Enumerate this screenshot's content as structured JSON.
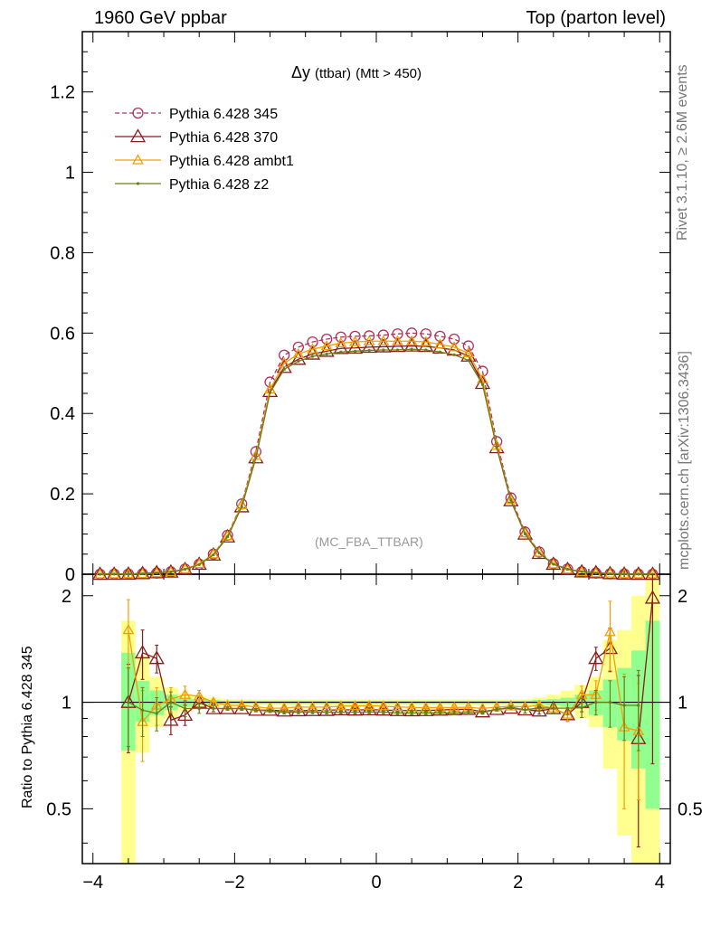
{
  "header": {
    "left": "1960 GeV ppbar",
    "right": "Top (parton level)"
  },
  "side_labels": {
    "rivet": "Rivet 3.1.10, ≥ 2.6M events",
    "site": "mcplots.cern.ch [arXiv:1306.3436]"
  },
  "chart_data": {
    "type": "line",
    "title_symbol": "Δy",
    "title_paren": "(ttbar)",
    "title_rest": "(Mtt > 450)",
    "reference_label": "(MC_FBA_TTBAR)",
    "xlabel": "",
    "ylabel": "",
    "ratio_ylabel": "Ratio to Pythia 6.428 345",
    "xlim": [
      -4.15,
      4.15
    ],
    "ylim": [
      0,
      1.35
    ],
    "ratio_ylim": [
      0.35,
      2.3
    ],
    "x_ticks": [
      "−4",
      "−2",
      "0",
      "2",
      "4"
    ],
    "y_ticks": [
      "0",
      "0.2",
      "0.4",
      "0.6",
      "0.8",
      "1",
      "1.2"
    ],
    "ratio_y_ticks": [
      "0.5",
      "1",
      "2"
    ],
    "legend_position": "top-left",
    "x": [
      -3.9,
      -3.7,
      -3.5,
      -3.3,
      -3.1,
      -2.9,
      -2.7,
      -2.5,
      -2.3,
      -2.1,
      -1.9,
      -1.7,
      -1.5,
      -1.3,
      -1.1,
      -0.9,
      -0.7,
      -0.5,
      -0.3,
      -0.1,
      0.1,
      0.3,
      0.5,
      0.7,
      0.9,
      1.1,
      1.3,
      1.5,
      1.7,
      1.9,
      2.1,
      2.3,
      2.5,
      2.7,
      2.9,
      3.1,
      3.3,
      3.5,
      3.7,
      3.9
    ],
    "series": [
      {
        "name": "Pythia 6.428 345",
        "color": "#b5305a",
        "marker": "circle",
        "dashed": true,
        "values": [
          0,
          0.0002,
          0.0005,
          0.0013,
          0.003,
          0.006,
          0.013,
          0.025,
          0.05,
          0.097,
          0.175,
          0.305,
          0.478,
          0.545,
          0.565,
          0.578,
          0.585,
          0.59,
          0.592,
          0.593,
          0.595,
          0.598,
          0.6,
          0.598,
          0.592,
          0.585,
          0.568,
          0.505,
          0.33,
          0.19,
          0.105,
          0.055,
          0.026,
          0.013,
          0.006,
          0.003,
          0.0012,
          0.0005,
          0.0002,
          0
        ]
      },
      {
        "name": "Pythia 6.428 370",
        "color": "#8b1a1a",
        "marker": "triangle",
        "dashed": false,
        "values": [
          0,
          0.0002,
          0.0005,
          0.0018,
          0.004,
          0.0055,
          0.012,
          0.025,
          0.048,
          0.093,
          0.168,
          0.29,
          0.455,
          0.515,
          0.535,
          0.548,
          0.555,
          0.562,
          0.563,
          0.565,
          0.566,
          0.567,
          0.568,
          0.567,
          0.563,
          0.558,
          0.543,
          0.475,
          0.315,
          0.183,
          0.1,
          0.052,
          0.025,
          0.012,
          0.006,
          0.004,
          0.0017,
          0.0006,
          0.00015,
          0
        ]
      },
      {
        "name": "Pythia 6.428 ambt1",
        "color": "#f0a000",
        "marker": "triangle",
        "dashed": false,
        "values": [
          0,
          0.0002,
          0.0004,
          0.0011,
          0.003,
          0.006,
          0.013,
          0.026,
          0.05,
          0.095,
          0.172,
          0.295,
          0.46,
          0.525,
          0.548,
          0.56,
          0.568,
          0.575,
          0.578,
          0.58,
          0.58,
          0.58,
          0.58,
          0.578,
          0.572,
          0.565,
          0.55,
          0.485,
          0.32,
          0.185,
          0.102,
          0.054,
          0.025,
          0.012,
          0.006,
          0.003,
          0.0019,
          0.0004,
          0.00015,
          0
        ]
      },
      {
        "name": "Pythia 6.428 z2",
        "color": "#6b7d16",
        "marker": "dot",
        "dashed": false,
        "values": [
          0,
          0.0002,
          0.0005,
          0.0012,
          0.0032,
          0.0057,
          0.0125,
          0.024,
          0.048,
          0.093,
          0.168,
          0.29,
          0.452,
          0.51,
          0.53,
          0.542,
          0.548,
          0.553,
          0.555,
          0.557,
          0.558,
          0.558,
          0.56,
          0.558,
          0.553,
          0.546,
          0.532,
          0.472,
          0.315,
          0.184,
          0.1,
          0.053,
          0.025,
          0.0125,
          0.0065,
          0.003,
          0.0012,
          0.0005,
          0.0002,
          0
        ]
      }
    ],
    "ratio_series": [
      {
        "name": "Pythia 6.428 370",
        "color": "#8b1a1a",
        "marker": "triangle",
        "values": [
          null,
          null,
          1.0,
          1.38,
          1.33,
          0.89,
          0.92,
          1.0,
          0.96,
          0.96,
          0.96,
          0.95,
          0.95,
          0.945,
          0.947,
          0.948,
          0.949,
          0.953,
          0.951,
          0.953,
          0.951,
          0.948,
          0.947,
          0.948,
          0.951,
          0.954,
          0.956,
          0.94,
          0.955,
          0.963,
          0.952,
          0.945,
          0.96,
          0.923,
          1.0,
          1.33,
          1.42,
          null,
          0.79,
          1.97
        ],
        "err": [
          0,
          0,
          0.28,
          0.22,
          0.12,
          0.08,
          0.06,
          0.04,
          0.02,
          0.01,
          0.01,
          0.01,
          0.01,
          0.01,
          0.01,
          0.01,
          0.01,
          0.01,
          0.01,
          0.01,
          0.01,
          0.01,
          0.01,
          0.01,
          0.01,
          0.01,
          0.01,
          0.01,
          0.01,
          0.01,
          0.02,
          0.02,
          0.03,
          0.04,
          0.06,
          0.1,
          0.2,
          0,
          0.4,
          1.3
        ]
      },
      {
        "name": "Pythia 6.428 ambt1",
        "color": "#f0a000",
        "marker": "triangle",
        "values": [
          null,
          null,
          1.6,
          0.88,
          0.98,
          1.02,
          1.05,
          1.04,
          1.0,
          0.98,
          0.98,
          0.97,
          0.962,
          0.963,
          0.97,
          0.968,
          0.97,
          0.975,
          0.976,
          0.978,
          0.975,
          0.97,
          0.967,
          0.966,
          0.966,
          0.966,
          0.968,
          0.96,
          0.97,
          0.974,
          0.971,
          0.98,
          0.962,
          0.923,
          1.05,
          1.05,
          1.58,
          0.85,
          0.83,
          null
        ],
        "err": [
          0,
          0,
          0.35,
          0.2,
          0.12,
          0.08,
          0.06,
          0.04,
          0.02,
          0.01,
          0.01,
          0.01,
          0.01,
          0.01,
          0.01,
          0.01,
          0.01,
          0.01,
          0.01,
          0.01,
          0.01,
          0.01,
          0.01,
          0.01,
          0.01,
          0.01,
          0.01,
          0.01,
          0.01,
          0.01,
          0.02,
          0.02,
          0.03,
          0.04,
          0.06,
          0.1,
          0.35,
          0.35,
          0.3,
          0
        ]
      },
      {
        "name": "Pythia 6.428 z2",
        "color": "#6b7d16",
        "marker": "dot",
        "values": [
          null,
          null,
          1.0,
          0.95,
          0.93,
          1.0,
          0.96,
          0.96,
          0.96,
          0.96,
          0.96,
          0.95,
          0.945,
          0.936,
          0.938,
          0.938,
          0.937,
          0.937,
          0.937,
          0.939,
          0.938,
          0.933,
          0.933,
          0.933,
          0.934,
          0.933,
          0.937,
          0.935,
          0.955,
          0.968,
          0.952,
          0.964,
          0.962,
          0.962,
          0.965,
          1.0,
          1.0,
          0.98,
          0.98,
          null
        ],
        "err": [
          0,
          0,
          0.25,
          0.15,
          0.1,
          0.07,
          0.05,
          0.03,
          0.02,
          0.01,
          0.01,
          0.01,
          0.01,
          0.01,
          0.01,
          0.01,
          0.01,
          0.01,
          0.01,
          0.01,
          0.01,
          0.01,
          0.01,
          0.01,
          0.01,
          0.01,
          0.01,
          0.01,
          0.01,
          0.01,
          0.02,
          0.02,
          0.03,
          0.04,
          0.06,
          0.08,
          0.15,
          0.2,
          0.25,
          0
        ]
      }
    ],
    "ratio_bands": {
      "inner_color": "#90ff90",
      "outer_color": "#ffff90",
      "x_edges": [
        -3.6,
        -3.4,
        -3.2,
        -3.0,
        -2.8,
        -2.6,
        -2.4,
        -2.2,
        -2.0,
        2.0,
        2.2,
        2.4,
        2.6,
        2.8,
        3.0,
        3.2,
        3.4,
        3.6,
        3.8,
        4.0
      ],
      "inner_lo": [
        0.73,
        0.88,
        0.92,
        0.95,
        0.97,
        0.98,
        0.985,
        0.99,
        0.99,
        0.99,
        0.985,
        0.98,
        0.97,
        0.96,
        0.92,
        0.85,
        0.78,
        0.65,
        0.5
      ],
      "inner_hi": [
        1.38,
        1.15,
        1.08,
        1.05,
        1.03,
        1.02,
        1.015,
        1.01,
        1.01,
        1.01,
        1.015,
        1.02,
        1.03,
        1.05,
        1.08,
        1.16,
        1.25,
        1.4,
        1.7
      ],
      "outer_lo": [
        0.35,
        0.72,
        0.85,
        0.9,
        0.94,
        0.96,
        0.97,
        0.98,
        0.98,
        0.98,
        0.975,
        0.965,
        0.95,
        0.9,
        0.85,
        0.65,
        0.42,
        0.35,
        0.35
      ],
      "outer_hi": [
        1.7,
        1.35,
        1.18,
        1.1,
        1.06,
        1.04,
        1.03,
        1.02,
        1.02,
        1.02,
        1.03,
        1.05,
        1.08,
        1.12,
        1.18,
        1.5,
        1.6,
        2.0,
        2.3
      ]
    }
  }
}
